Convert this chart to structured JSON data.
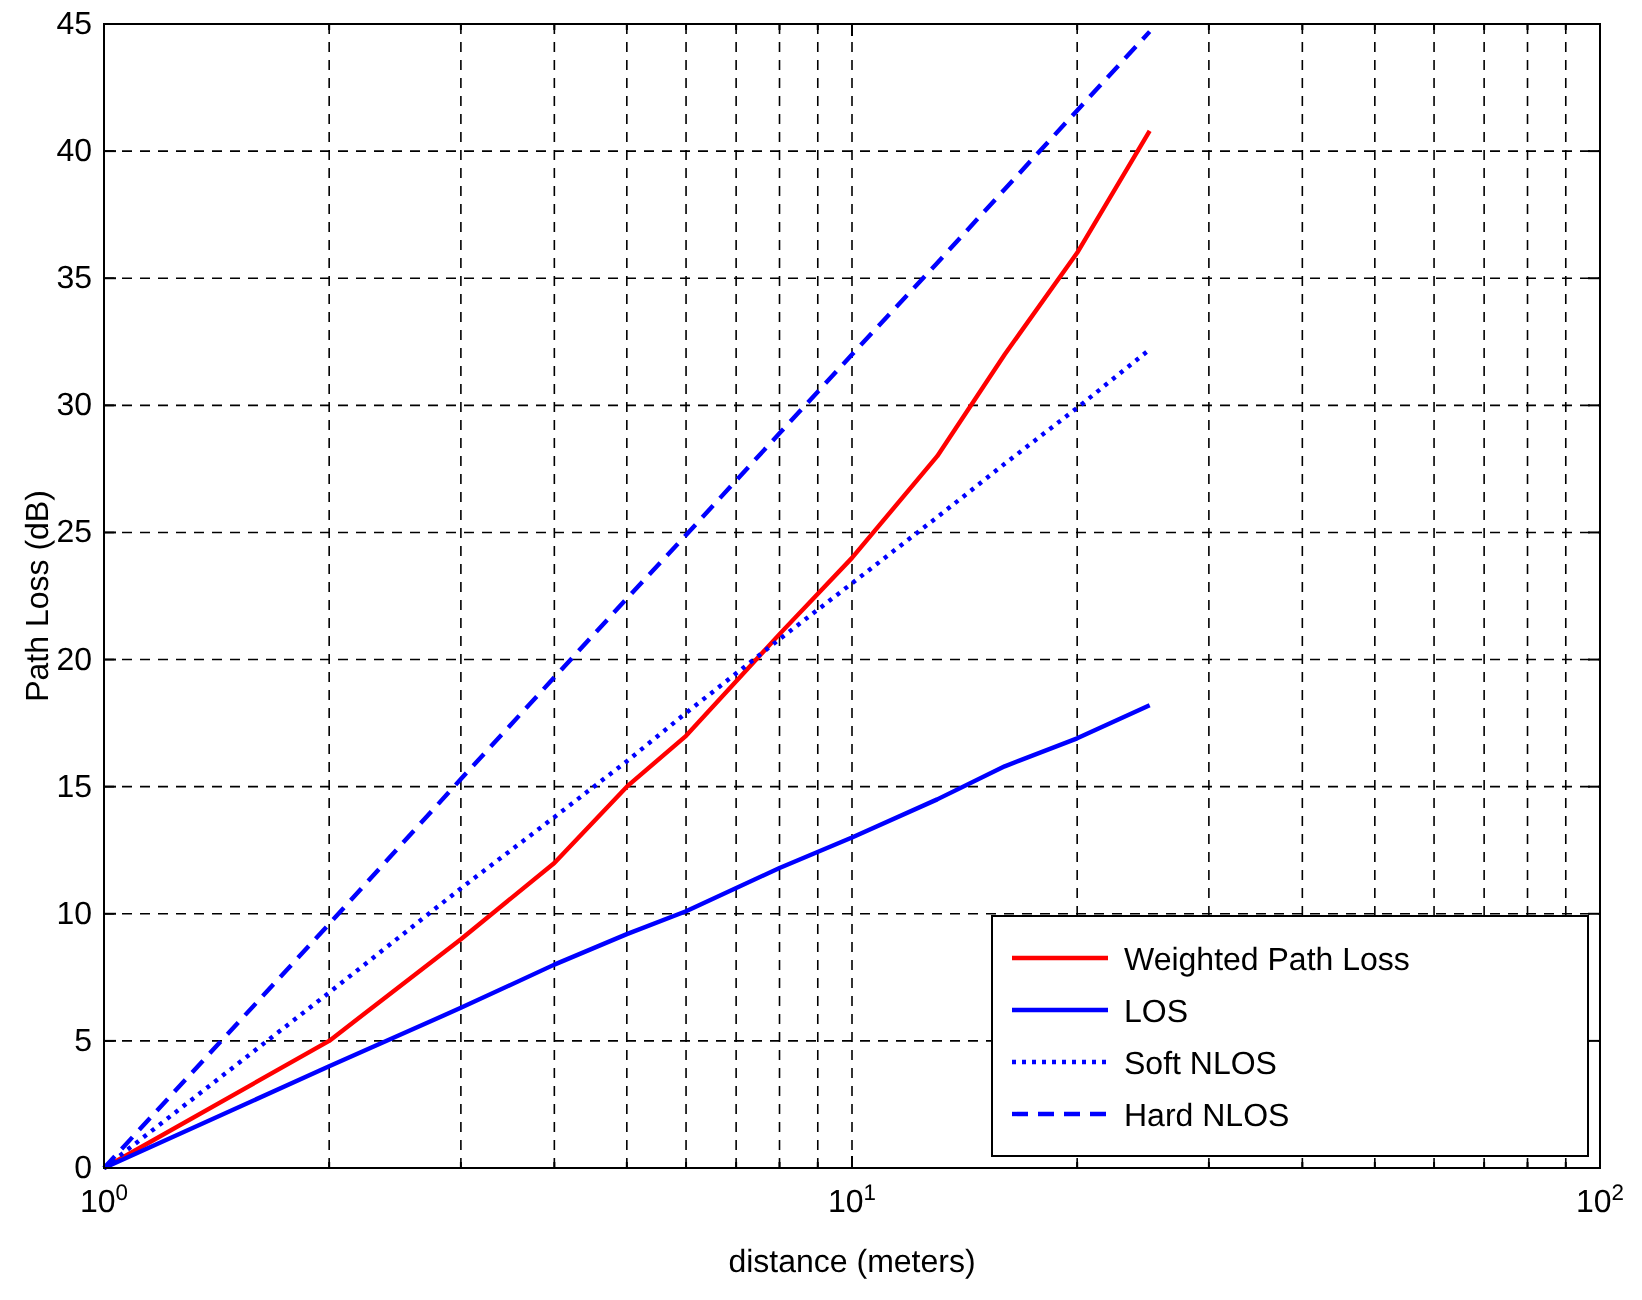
{
  "chart_data": {
    "type": "line",
    "xlabel": "distance (meters)",
    "ylabel": "Path Loss (dB)",
    "log": "x",
    "xlim": [
      1,
      100
    ],
    "ylim": [
      0,
      45
    ],
    "xticks": [
      {
        "value": 1,
        "label": "10$^{0}$"
      },
      {
        "value": 2,
        "label": null
      },
      {
        "value": 3,
        "label": null
      },
      {
        "value": 4,
        "label": null
      },
      {
        "value": 5,
        "label": null
      },
      {
        "value": 6,
        "label": null
      },
      {
        "value": 7,
        "label": null
      },
      {
        "value": 8,
        "label": null
      },
      {
        "value": 9,
        "label": null
      },
      {
        "value": 10,
        "label": "10$^{1}$"
      },
      {
        "value": 20,
        "label": null
      },
      {
        "value": 30,
        "label": null
      },
      {
        "value": 40,
        "label": null
      },
      {
        "value": 50,
        "label": null
      },
      {
        "value": 60,
        "label": null
      },
      {
        "value": 70,
        "label": null
      },
      {
        "value": 80,
        "label": null
      },
      {
        "value": 90,
        "label": null
      },
      {
        "value": 100,
        "label": "10$^{2}$"
      }
    ],
    "yticks": [
      0,
      5,
      10,
      15,
      20,
      25,
      30,
      35,
      40,
      45
    ],
    "grid": true,
    "legend": "bottom right",
    "x": [
      1,
      2,
      3,
      4,
      5,
      6,
      8,
      10,
      13,
      16,
      20,
      25
    ],
    "series": [
      {
        "name": "Weighted Path Loss",
        "color": "#ff0000",
        "line_style": "solid",
        "values": [
          0,
          5,
          9,
          12,
          15,
          17,
          21,
          24,
          28,
          32,
          36,
          40.8
        ]
      },
      {
        "name": "LOS",
        "color": "#0000ff",
        "line_style": "solid",
        "values": [
          0,
          4,
          6.3,
          8,
          9.2,
          10.1,
          11.8,
          13,
          14.5,
          15.8,
          16.9,
          18.2
        ]
      },
      {
        "name": "Soft NLOS",
        "color": "#0000ff",
        "line_style": "dotted",
        "values": [
          0,
          6.9,
          11,
          13.8,
          16,
          17.9,
          20.8,
          23,
          25.6,
          27.7,
          29.9,
          32.2
        ]
      },
      {
        "name": "Hard NLOS",
        "color": "#0000ff",
        "line_style": "dashed",
        "values": [
          0,
          9.6,
          15.3,
          19.3,
          22.4,
          24.9,
          28.9,
          32,
          35.6,
          38.5,
          41.6,
          44.7
        ]
      }
    ]
  }
}
